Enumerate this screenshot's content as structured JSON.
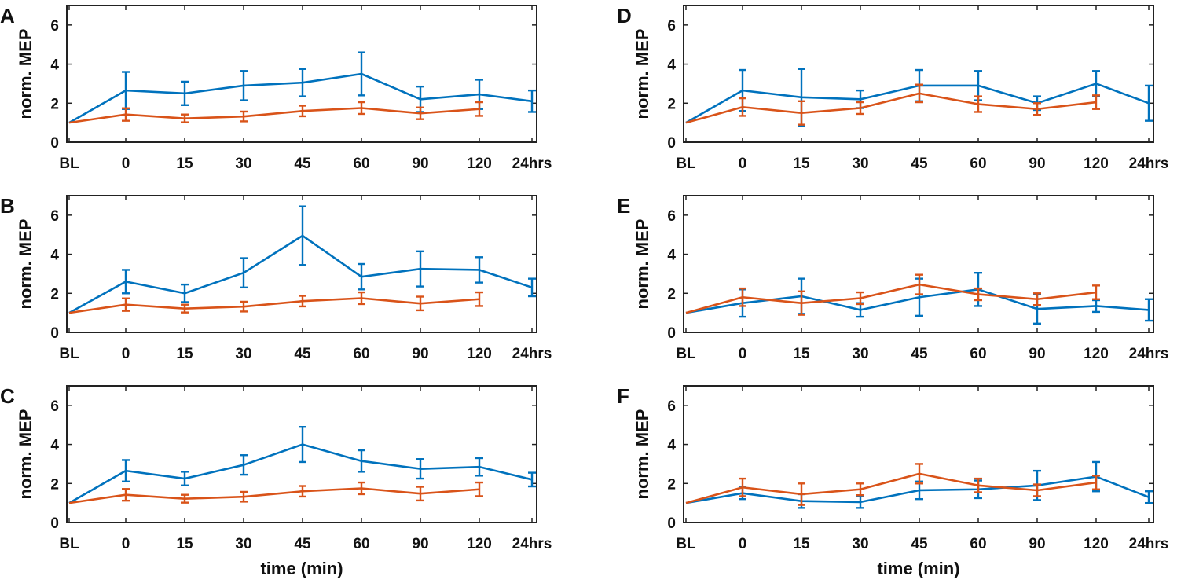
{
  "chart_data": [
    {
      "panel": "A",
      "type": "line",
      "categories": [
        "BL",
        "0",
        "15",
        "30",
        "45",
        "60",
        "90",
        "120",
        "24hrs"
      ],
      "ylabel": "norm. MEP",
      "xlabel": "",
      "ylim": [
        0,
        7
      ],
      "yticks": [
        0,
        2,
        4,
        6
      ],
      "series": [
        {
          "name": "blue",
          "color": "#0072BD",
          "values": [
            1.0,
            2.65,
            2.5,
            2.9,
            3.05,
            3.5,
            2.2,
            2.45,
            2.1
          ],
          "errors": [
            0,
            0.95,
            0.6,
            0.75,
            0.7,
            1.1,
            0.65,
            0.75,
            0.55
          ]
        },
        {
          "name": "orange",
          "color": "#D95319",
          "values": [
            1.0,
            1.42,
            1.22,
            1.32,
            1.6,
            1.75,
            1.48,
            1.7,
            null
          ],
          "errors": [
            0,
            0.32,
            0.2,
            0.25,
            0.27,
            0.3,
            0.3,
            0.35,
            null
          ]
        }
      ]
    },
    {
      "panel": "B",
      "type": "line",
      "categories": [
        "BL",
        "0",
        "15",
        "30",
        "45",
        "60",
        "90",
        "120",
        "24hrs"
      ],
      "ylabel": "norm. MEP",
      "xlabel": "",
      "ylim": [
        0,
        7
      ],
      "yticks": [
        0,
        2,
        4,
        6
      ],
      "series": [
        {
          "name": "blue",
          "color": "#0072BD",
          "values": [
            1.0,
            2.6,
            2.0,
            3.05,
            4.95,
            2.85,
            3.25,
            3.2,
            2.3
          ],
          "errors": [
            0,
            0.6,
            0.45,
            0.75,
            1.5,
            0.65,
            0.9,
            0.65,
            0.45
          ]
        },
        {
          "name": "orange",
          "color": "#D95319",
          "values": [
            1.0,
            1.42,
            1.22,
            1.32,
            1.6,
            1.75,
            1.48,
            1.7,
            null
          ],
          "errors": [
            0,
            0.32,
            0.2,
            0.25,
            0.27,
            0.3,
            0.35,
            0.35,
            null
          ]
        }
      ]
    },
    {
      "panel": "C",
      "type": "line",
      "categories": [
        "BL",
        "0",
        "15",
        "30",
        "45",
        "60",
        "90",
        "120",
        "24hrs"
      ],
      "ylabel": "norm. MEP",
      "xlabel": "time (min)",
      "ylim": [
        0,
        7
      ],
      "yticks": [
        0,
        2,
        4,
        6
      ],
      "series": [
        {
          "name": "blue",
          "color": "#0072BD",
          "values": [
            1.0,
            2.65,
            2.25,
            2.95,
            4.0,
            3.15,
            2.75,
            2.85,
            2.2
          ],
          "errors": [
            0,
            0.55,
            0.35,
            0.5,
            0.9,
            0.55,
            0.5,
            0.45,
            0.35
          ]
        },
        {
          "name": "orange",
          "color": "#D95319",
          "values": [
            1.0,
            1.42,
            1.22,
            1.32,
            1.6,
            1.75,
            1.48,
            1.7,
            null
          ],
          "errors": [
            0,
            0.3,
            0.2,
            0.25,
            0.27,
            0.3,
            0.35,
            0.35,
            null
          ]
        }
      ]
    },
    {
      "panel": "D",
      "type": "line",
      "categories": [
        "BL",
        "0",
        "15",
        "30",
        "45",
        "60",
        "90",
        "120",
        "24hrs"
      ],
      "ylabel": "norm. MEP",
      "xlabel": "",
      "ylim": [
        0,
        7
      ],
      "yticks": [
        0,
        2,
        4,
        6
      ],
      "series": [
        {
          "name": "blue",
          "color": "#0072BD",
          "values": [
            1.0,
            2.65,
            2.3,
            2.2,
            2.9,
            2.9,
            2.0,
            3.0,
            2.0
          ],
          "errors": [
            0,
            1.05,
            1.45,
            0.45,
            0.8,
            0.75,
            0.35,
            0.65,
            0.9
          ]
        },
        {
          "name": "orange",
          "color": "#D95319",
          "values": [
            1.0,
            1.8,
            1.5,
            1.75,
            2.5,
            1.95,
            1.7,
            2.05,
            null
          ],
          "errors": [
            0,
            0.45,
            0.6,
            0.3,
            0.45,
            0.4,
            0.3,
            0.35,
            null
          ]
        }
      ]
    },
    {
      "panel": "E",
      "type": "line",
      "categories": [
        "BL",
        "0",
        "15",
        "30",
        "45",
        "60",
        "90",
        "120",
        "24hrs"
      ],
      "ylabel": "norm. MEP",
      "xlabel": "",
      "ylim": [
        0,
        7
      ],
      "yticks": [
        0,
        2,
        4,
        6
      ],
      "series": [
        {
          "name": "blue",
          "color": "#0072BD",
          "values": [
            1.0,
            1.5,
            1.85,
            1.15,
            1.8,
            2.2,
            1.2,
            1.35,
            1.15
          ],
          "errors": [
            0,
            0.7,
            0.9,
            0.35,
            0.95,
            0.85,
            0.75,
            0.3,
            0.55
          ]
        },
        {
          "name": "orange",
          "color": "#D95319",
          "values": [
            1.0,
            1.8,
            1.5,
            1.75,
            2.45,
            1.95,
            1.7,
            2.05,
            null
          ],
          "errors": [
            0,
            0.45,
            0.6,
            0.3,
            0.5,
            0.3,
            0.3,
            0.35,
            null
          ]
        }
      ]
    },
    {
      "panel": "F",
      "type": "line",
      "categories": [
        "BL",
        "0",
        "15",
        "30",
        "45",
        "60",
        "90",
        "120",
        "24hrs"
      ],
      "ylabel": "norm. MEP",
      "xlabel": "time (min)",
      "ylim": [
        0,
        7
      ],
      "yticks": [
        0,
        2,
        4,
        6
      ],
      "series": [
        {
          "name": "blue",
          "color": "#0072BD",
          "values": [
            1.0,
            1.5,
            1.1,
            1.05,
            1.65,
            1.7,
            1.9,
            2.35,
            1.3
          ],
          "errors": [
            0,
            0.3,
            0.35,
            0.3,
            0.45,
            0.45,
            0.75,
            0.75,
            0.3
          ]
        },
        {
          "name": "orange",
          "color": "#D95319",
          "values": [
            1.0,
            1.8,
            1.45,
            1.7,
            2.5,
            1.9,
            1.65,
            2.05,
            null
          ],
          "errors": [
            0,
            0.45,
            0.55,
            0.3,
            0.5,
            0.35,
            0.3,
            0.35,
            null
          ]
        }
      ]
    }
  ]
}
